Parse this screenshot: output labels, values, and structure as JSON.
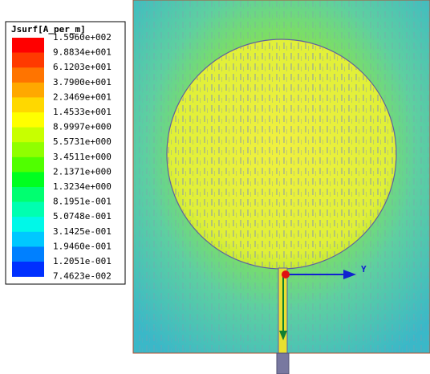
{
  "legend": {
    "title": "Jsurf[A_per_m]",
    "labels": [
      "1.5960e+002",
      "9.8834e+001",
      "6.1203e+001",
      "3.7900e+001",
      "2.3469e+001",
      "1.4533e+001",
      "8.9997e+000",
      "5.5731e+000",
      "3.4511e+000",
      "2.1371e+000",
      "1.3234e+000",
      "8.1951e-001",
      "5.0748e-001",
      "3.1425e-001",
      "1.9460e-001",
      "1.2051e-001",
      "7.4623e-002"
    ],
    "colors": [
      "#ff0000",
      "#ff3a00",
      "#ff7400",
      "#ffa800",
      "#ffd800",
      "#ffff00",
      "#c8ff00",
      "#90ff00",
      "#50ff00",
      "#00ff20",
      "#00ff70",
      "#00ffb0",
      "#00f8e8",
      "#00c8ff",
      "#0080ff",
      "#0030ff"
    ]
  },
  "axis": {
    "label": "Y"
  }
}
